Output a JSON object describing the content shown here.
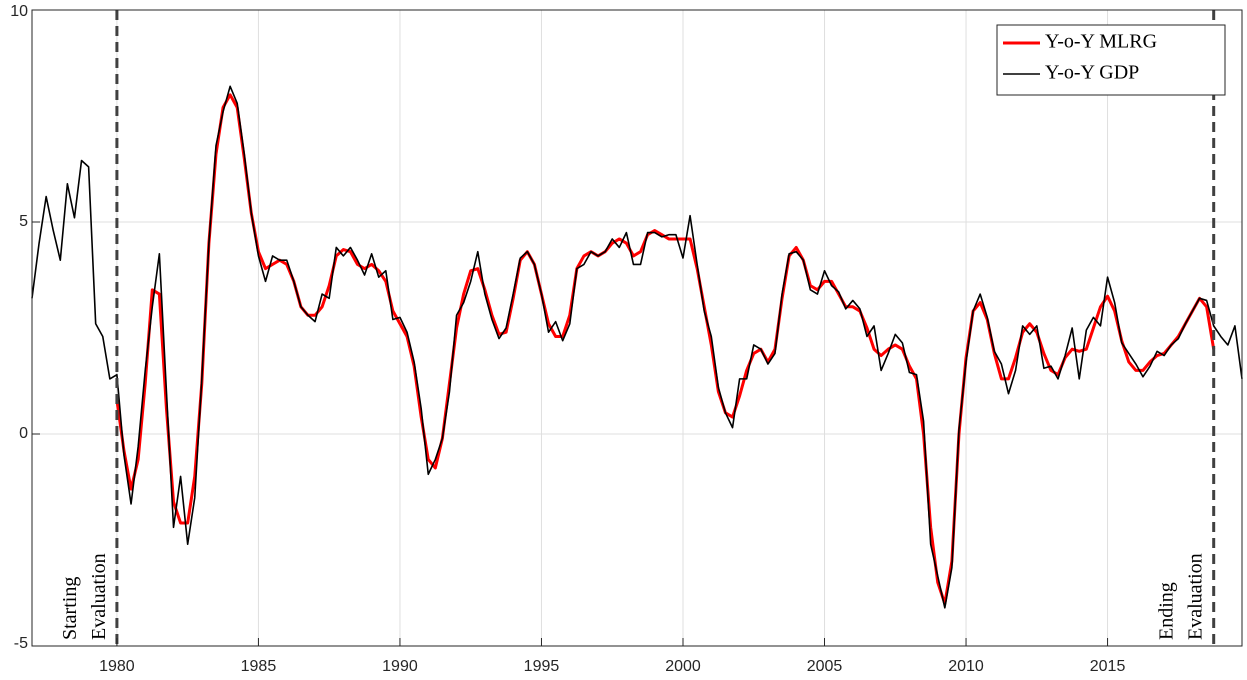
{
  "chart_data": {
    "type": "line",
    "x": [
      1977,
      1977.25,
      1977.5,
      1977.75,
      1978,
      1978.25,
      1978.5,
      1978.75,
      1979,
      1979.25,
      1979.5,
      1979.75,
      1980,
      1980.25,
      1980.5,
      1980.75,
      1981,
      1981.25,
      1981.5,
      1981.75,
      1982,
      1982.25,
      1982.5,
      1982.75,
      1983,
      1983.25,
      1983.5,
      1983.75,
      1984,
      1984.25,
      1984.5,
      1984.75,
      1985,
      1985.25,
      1985.5,
      1985.75,
      1986,
      1986.25,
      1986.5,
      1986.75,
      1987,
      1987.25,
      1987.5,
      1987.75,
      1988,
      1988.25,
      1988.5,
      1988.75,
      1989,
      1989.25,
      1989.5,
      1989.75,
      1990,
      1990.25,
      1990.5,
      1990.75,
      1991,
      1991.25,
      1991.5,
      1991.75,
      1992,
      1992.25,
      1992.5,
      1992.75,
      1993,
      1993.25,
      1993.5,
      1993.75,
      1994,
      1994.25,
      1994.5,
      1994.75,
      1995,
      1995.25,
      1995.5,
      1995.75,
      1996,
      1996.25,
      1996.5,
      1996.75,
      1997,
      1997.25,
      1997.5,
      1997.75,
      1998,
      1998.25,
      1998.5,
      1998.75,
      1999,
      1999.25,
      1999.5,
      1999.75,
      2000,
      2000.25,
      2000.5,
      2000.75,
      2001,
      2001.25,
      2001.5,
      2001.75,
      2002,
      2002.25,
      2002.5,
      2002.75,
      2003,
      2003.25,
      2003.5,
      2003.75,
      2004,
      2004.25,
      2004.5,
      2004.75,
      2005,
      2005.25,
      2005.5,
      2005.75,
      2006,
      2006.25,
      2006.5,
      2006.75,
      2007,
      2007.25,
      2007.5,
      2007.75,
      2008,
      2008.25,
      2008.5,
      2008.75,
      2009,
      2009.25,
      2009.5,
      2009.75,
      2010,
      2010.25,
      2010.5,
      2010.75,
      2011,
      2011.25,
      2011.5,
      2011.75,
      2012,
      2012.25,
      2012.5,
      2012.75,
      2013,
      2013.25,
      2013.5,
      2013.75,
      2014,
      2014.25,
      2014.5,
      2014.75,
      2015,
      2015.25,
      2015.5,
      2015.75,
      2016,
      2016.25,
      2016.5,
      2016.75,
      2017,
      2017.25,
      2017.5,
      2017.75,
      2018,
      2018.25,
      2018.5,
      2018.75,
      2019,
      2019.25,
      2019.5,
      2019.75
    ],
    "series": [
      {
        "name": "Y-o-Y MLRG",
        "color": "#ff0000",
        "width": 3,
        "values": [
          null,
          null,
          null,
          null,
          null,
          null,
          null,
          null,
          null,
          null,
          null,
          null,
          0.8,
          -0.4,
          -1.3,
          -0.6,
          1.2,
          3.4,
          3.3,
          0.6,
          -1.6,
          -2.1,
          -2.1,
          -1.0,
          1.2,
          4.5,
          6.6,
          7.7,
          8.0,
          7.7,
          6.5,
          5.2,
          4.3,
          3.9,
          4.0,
          4.1,
          4.0,
          3.6,
          3.0,
          2.8,
          2.8,
          3.0,
          3.5,
          4.2,
          4.35,
          4.3,
          4.0,
          3.9,
          4.0,
          3.85,
          3.6,
          2.9,
          2.6,
          2.3,
          1.6,
          0.4,
          -0.6,
          -0.8,
          -0.1,
          1.2,
          2.5,
          3.3,
          3.85,
          3.9,
          3.4,
          2.8,
          2.35,
          2.4,
          3.2,
          4.1,
          4.3,
          4.0,
          3.3,
          2.6,
          2.3,
          2.3,
          2.8,
          3.9,
          4.2,
          4.3,
          4.2,
          4.3,
          4.5,
          4.6,
          4.5,
          4.2,
          4.3,
          4.7,
          4.8,
          4.7,
          4.6,
          4.6,
          4.6,
          4.6,
          3.9,
          3.0,
          2.1,
          1.0,
          0.5,
          0.4,
          0.9,
          1.5,
          1.9,
          2.0,
          1.7,
          2.0,
          3.2,
          4.2,
          4.4,
          4.1,
          3.5,
          3.4,
          3.6,
          3.6,
          3.3,
          3.0,
          3.0,
          2.9,
          2.5,
          2.0,
          1.85,
          2.0,
          2.1,
          2.0,
          1.6,
          1.3,
          0.0,
          -2.2,
          -3.5,
          -4.0,
          -3.0,
          0.0,
          1.8,
          2.9,
          3.1,
          2.7,
          1.9,
          1.3,
          1.3,
          1.8,
          2.4,
          2.6,
          2.4,
          1.9,
          1.5,
          1.4,
          1.8,
          2.0,
          1.95,
          2.0,
          2.5,
          3.0,
          3.25,
          2.9,
          2.2,
          1.7,
          1.5,
          1.5,
          1.7,
          1.85,
          1.9,
          2.1,
          2.3,
          2.6,
          2.9,
          3.2,
          3.0,
          2.0,
          null,
          null,
          null,
          null
        ]
      },
      {
        "name": "Y-o-Y GDP",
        "color": "#000000",
        "width": 1.6,
        "values": [
          3.2,
          4.5,
          5.6,
          4.8,
          4.1,
          5.9,
          5.1,
          6.45,
          6.3,
          2.6,
          2.3,
          1.3,
          1.4,
          -0.5,
          -1.65,
          -0.3,
          1.5,
          3.0,
          4.25,
          1.0,
          -2.2,
          -1.0,
          -2.6,
          -1.5,
          1.3,
          4.5,
          6.8,
          7.6,
          8.2,
          7.8,
          6.6,
          5.2,
          4.2,
          3.6,
          4.2,
          4.1,
          4.1,
          3.6,
          3.0,
          2.8,
          2.65,
          3.3,
          3.2,
          4.4,
          4.2,
          4.4,
          4.1,
          3.75,
          4.25,
          3.7,
          3.85,
          2.7,
          2.75,
          2.4,
          1.7,
          0.6,
          -0.95,
          -0.6,
          -0.1,
          1.0,
          2.8,
          3.1,
          3.6,
          4.3,
          3.3,
          2.7,
          2.25,
          2.5,
          3.3,
          4.15,
          4.3,
          4.0,
          3.3,
          2.4,
          2.65,
          2.2,
          2.6,
          3.9,
          4.0,
          4.3,
          4.2,
          4.3,
          4.6,
          4.4,
          4.75,
          4.0,
          4.0,
          4.75,
          4.75,
          4.65,
          4.7,
          4.7,
          4.15,
          5.15,
          4.0,
          2.9,
          2.3,
          1.1,
          0.5,
          0.15,
          1.3,
          1.3,
          2.1,
          2.0,
          1.65,
          1.9,
          3.3,
          4.25,
          4.3,
          4.1,
          3.4,
          3.3,
          3.85,
          3.5,
          3.35,
          2.95,
          3.15,
          2.95,
          2.3,
          2.55,
          1.5,
          1.9,
          2.35,
          2.15,
          1.45,
          1.4,
          0.3,
          -2.6,
          -3.35,
          -4.1,
          -3.15,
          0.1,
          1.7,
          2.9,
          3.3,
          2.75,
          1.95,
          1.65,
          0.95,
          1.5,
          2.55,
          2.35,
          2.55,
          1.55,
          1.6,
          1.3,
          1.85,
          2.5,
          1.3,
          2.45,
          2.75,
          2.55,
          3.7,
          3.1,
          2.15,
          1.9,
          1.65,
          1.35,
          1.6,
          1.95,
          1.85,
          2.1,
          2.25,
          2.6,
          2.9,
          3.2,
          3.15,
          2.55,
          2.3,
          2.1,
          2.55,
          1.3
        ]
      }
    ],
    "xlim": [
      1977,
      2019.75
    ],
    "ylim": [
      -5,
      10
    ],
    "xticks": [
      1980,
      1985,
      1990,
      1995,
      2000,
      2005,
      2010,
      2015
    ],
    "yticks": [
      -5,
      0,
      5,
      10
    ],
    "grid": true,
    "legend": "top-right",
    "annotations": [
      {
        "x": 1980,
        "lines": [
          "Starting",
          "Evaluation"
        ]
      },
      {
        "x": 2018.75,
        "lines": [
          "Ending",
          "Evaluation"
        ]
      }
    ]
  }
}
